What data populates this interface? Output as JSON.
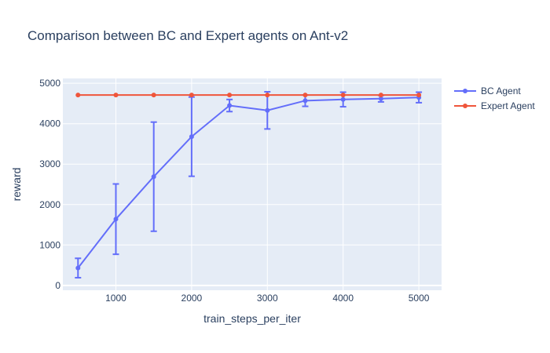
{
  "chart_data": {
    "type": "line",
    "title": "Comparison between BC and Expert agents on Ant-v2",
    "xlabel": "train_steps_per_iter",
    "ylabel": "reward",
    "x": [
      500,
      1000,
      1500,
      2000,
      2500,
      3000,
      3500,
      4000,
      4500,
      5000
    ],
    "xlim": [
      300,
      5300
    ],
    "ylim": [
      -120,
      5120
    ],
    "xticks": [
      1000,
      2000,
      3000,
      4000,
      5000
    ],
    "xtick_labels": [
      "1000",
      "2000",
      "3000",
      "4000",
      "5000"
    ],
    "yticks": [
      0,
      1000,
      2000,
      3000,
      4000,
      5000
    ],
    "ytick_labels": [
      "0",
      "1000",
      "2000",
      "3000",
      "4000",
      "5000"
    ],
    "grid": true,
    "legend_position": "top-right outside",
    "series": [
      {
        "name": "BC Agent",
        "color": "#636efa",
        "values": [
          430,
          1640,
          2690,
          3680,
          4450,
          4330,
          4570,
          4600,
          4620,
          4650
        ],
        "error": [
          240,
          870,
          1350,
          980,
          150,
          460,
          140,
          180,
          80,
          130
        ]
      },
      {
        "name": "Expert Agent",
        "color": "#ef553b",
        "values": [
          4710,
          4710,
          4710,
          4710,
          4710,
          4710,
          4710,
          4710,
          4710,
          4710
        ]
      }
    ]
  }
}
